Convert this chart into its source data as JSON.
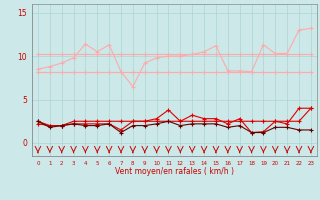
{
  "x": [
    0,
    1,
    2,
    3,
    4,
    5,
    6,
    7,
    8,
    9,
    10,
    11,
    12,
    13,
    14,
    15,
    16,
    17,
    18,
    19,
    20,
    21,
    22,
    23
  ],
  "line1": [
    10.2,
    10.2,
    10.2,
    10.2,
    10.2,
    10.2,
    10.2,
    10.2,
    10.2,
    10.2,
    10.2,
    10.2,
    10.2,
    10.2,
    10.2,
    10.2,
    10.2,
    10.2,
    10.2,
    10.2,
    10.2,
    10.2,
    10.2,
    10.2
  ],
  "line2": [
    8.2,
    8.2,
    8.2,
    8.2,
    8.2,
    8.2,
    8.2,
    8.2,
    8.2,
    8.2,
    8.2,
    8.2,
    8.2,
    8.2,
    8.2,
    8.2,
    8.2,
    8.2,
    8.2,
    8.2,
    8.2,
    8.2,
    8.2,
    8.2
  ],
  "line3": [
    8.5,
    8.8,
    9.2,
    9.8,
    11.4,
    10.5,
    11.3,
    8.2,
    6.5,
    9.2,
    9.8,
    10.0,
    10.0,
    10.2,
    10.5,
    11.2,
    8.3,
    8.3,
    8.2,
    11.3,
    10.3,
    10.3,
    13.0,
    13.2
  ],
  "line4": [
    2.2,
    2.0,
    2.0,
    2.5,
    2.5,
    2.5,
    2.5,
    2.5,
    2.5,
    2.5,
    2.5,
    2.5,
    2.5,
    2.5,
    2.5,
    2.5,
    2.5,
    2.5,
    2.5,
    2.5,
    2.5,
    2.5,
    2.5,
    4.0
  ],
  "line5": [
    2.5,
    2.0,
    2.0,
    2.2,
    2.2,
    2.2,
    2.2,
    1.5,
    2.5,
    2.5,
    2.8,
    3.8,
    2.5,
    3.2,
    2.8,
    2.8,
    2.2,
    2.8,
    1.2,
    1.3,
    2.5,
    2.2,
    4.0,
    4.0
  ],
  "line6": [
    2.5,
    1.8,
    2.0,
    2.2,
    2.0,
    2.0,
    2.2,
    1.2,
    2.0,
    2.0,
    2.2,
    2.5,
    2.0,
    2.2,
    2.2,
    2.2,
    1.8,
    2.0,
    1.2,
    1.2,
    1.8,
    1.8,
    1.5,
    1.5
  ],
  "wind_dirs": [
    "v",
    "v",
    "v",
    "v",
    "v",
    "v",
    "<",
    "v",
    "v",
    "<",
    "v",
    "v",
    "v",
    "v",
    "<",
    "v",
    "<",
    "v",
    "v",
    "v",
    "<",
    "v",
    "v",
    "<"
  ],
  "xlabel": "Vent moyen/en rafales ( km/h )",
  "ylim": [
    -1.5,
    16
  ],
  "yticks": [
    0,
    5,
    10,
    15
  ],
  "background_color": "#cce8e8",
  "grid_color": "#aad4d4",
  "line1_color": "#ffaaaa",
  "line2_color": "#ffaaaa",
  "line3_color": "#ffaaaa",
  "line4_color": "#dd0000",
  "line5_color": "#dd0000",
  "line6_color": "#660000"
}
